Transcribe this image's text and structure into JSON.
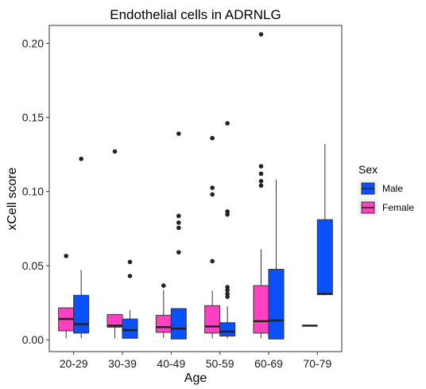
{
  "chart_data": {
    "type": "boxplot",
    "title": "Endothelial cells in ADRNLG",
    "xlabel": "Age",
    "ylabel": "xCell score",
    "ylim": [
      -0.008,
      0.212
    ],
    "yticks": [
      "0.00",
      "0.05",
      "0.10",
      "0.15",
      "0.20"
    ],
    "ytick_values": [
      0,
      0.05,
      0.1,
      0.15,
      0.2
    ],
    "categories": [
      "20-29",
      "30-39",
      "40-49",
      "50-59",
      "60-69",
      "70-79"
    ],
    "grid": false,
    "legend": {
      "title": "Sex",
      "position": "right",
      "entries": [
        {
          "name": "Male",
          "color": "#0a50ff"
        },
        {
          "name": "Female",
          "color": "#ff40c0"
        }
      ]
    },
    "series": [
      {
        "name": "Female",
        "color": "#ff40c0",
        "boxes": [
          {
            "category": "20-29",
            "whisker_low": 0.001,
            "q1": 0.006,
            "median": 0.014,
            "q3": 0.0215,
            "whisker_high": 0.0215,
            "outliers": [
              0.0565
            ]
          },
          {
            "category": "30-39",
            "whisker_low": 0.001,
            "q1": 0.0085,
            "median": 0.0095,
            "q3": 0.017,
            "whisker_high": 0.017,
            "outliers": [
              0.127
            ]
          },
          {
            "category": "40-49",
            "whisker_low": 0.001,
            "q1": 0.005,
            "median": 0.0085,
            "q3": 0.0165,
            "whisker_high": 0.0335,
            "outliers": [
              0.0365
            ]
          },
          {
            "category": "50-59",
            "whisker_low": 0.001,
            "q1": 0.0045,
            "median": 0.009,
            "q3": 0.023,
            "whisker_high": 0.033,
            "outliers": [
              0.053,
              0.098,
              0.1025,
              0.136
            ]
          },
          {
            "category": "60-69",
            "whisker_low": 0.001,
            "q1": 0.0045,
            "median": 0.0125,
            "q3": 0.0365,
            "whisker_high": 0.061,
            "outliers": [
              0.104,
              0.107,
              0.112,
              0.117,
              0.206
            ]
          },
          {
            "category": "70-79",
            "whisker_low": 0.0095,
            "q1": 0.0095,
            "median": 0.0095,
            "q3": 0.0095,
            "whisker_high": 0.0095,
            "outliers": []
          }
        ]
      },
      {
        "name": "Male",
        "color": "#0a50ff",
        "boxes": [
          {
            "category": "20-29",
            "whisker_low": 0.001,
            "q1": 0.0045,
            "median": 0.0105,
            "q3": 0.03,
            "whisker_high": 0.047,
            "outliers": [
              0.122
            ]
          },
          {
            "category": "30-39",
            "whisker_low": 0.001,
            "q1": 0.001,
            "median": 0.0065,
            "q3": 0.014,
            "whisker_high": 0.02,
            "outliers": [
              0.043,
              0.0525
            ]
          },
          {
            "category": "40-49",
            "whisker_low": 0.0005,
            "q1": 0.0005,
            "median": 0.0075,
            "q3": 0.021,
            "whisker_high": 0.021,
            "outliers": [
              0.059,
              0.0755,
              0.079,
              0.0835,
              0.139
            ]
          },
          {
            "category": "50-59",
            "whisker_low": 0.001,
            "q1": 0.0025,
            "median": 0.0055,
            "q3": 0.0115,
            "whisker_high": 0.0225,
            "outliers": [
              0.029,
              0.031,
              0.0335,
              0.0355,
              0.0845,
              0.0865,
              0.146
            ]
          },
          {
            "category": "60-69",
            "whisker_low": 0.0005,
            "q1": 0.0005,
            "median": 0.013,
            "q3": 0.0475,
            "whisker_high": 0.108,
            "outliers": []
          },
          {
            "category": "70-79",
            "whisker_low": 0.03,
            "q1": 0.0305,
            "median": 0.031,
            "q3": 0.081,
            "whisker_high": 0.132,
            "outliers": []
          }
        ]
      }
    ]
  }
}
